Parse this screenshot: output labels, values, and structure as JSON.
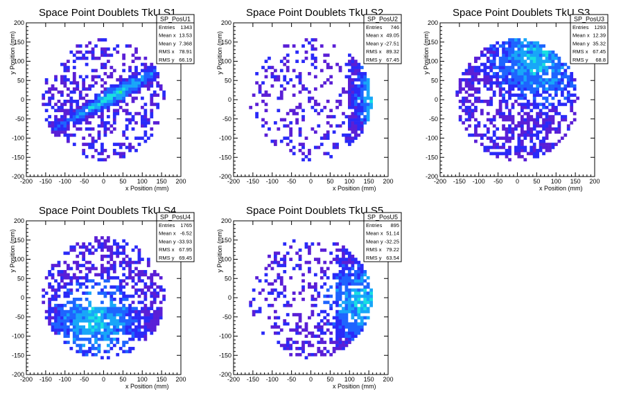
{
  "figure": {
    "background": "#ffffff"
  },
  "chart_data": [
    {
      "type": "heatmap",
      "title": "Space Point Doublets TkU S1",
      "xlabel": "x Position (mm)",
      "ylabel": "y Position (mm)",
      "xlim": [
        -200,
        200
      ],
      "ylim": [
        -200,
        200
      ],
      "xticks": [
        "-200",
        "-150",
        "-100",
        "-50",
        "0",
        "50",
        "100",
        "150",
        "200"
      ],
      "yticks": [
        "-200",
        "-150",
        "-100",
        "-50",
        "0",
        "50",
        "100",
        "150",
        "200"
      ],
      "stats": {
        "name": "SP_PosU1",
        "rows": [
          [
            "Entries",
            "1343"
          ],
          [
            "Mean x",
            "13.53"
          ],
          [
            "Mean y",
            "7.368"
          ],
          [
            "RMS x",
            "78.91"
          ],
          [
            "RMS y",
            "66.19"
          ]
        ]
      },
      "pattern": "diagonal-band",
      "angle_deg": 30,
      "hotspot": [
        30,
        10
      ],
      "colors": [
        "#5a1fd6",
        "#2a2af8",
        "#1e64ff",
        "#18a6f8",
        "#19e0e0",
        "#2ef08a",
        "#ffee1a",
        "#ff2a10"
      ]
    },
    {
      "type": "heatmap",
      "title": "Space Point Doublets TkU S2",
      "xlabel": "x Position (mm)",
      "ylabel": "y Position (mm)",
      "xlim": [
        -200,
        200
      ],
      "ylim": [
        -200,
        200
      ],
      "xticks": [
        "-200",
        "-150",
        "-100",
        "-50",
        "0",
        "50",
        "100",
        "150",
        "200"
      ],
      "yticks": [
        "-200",
        "-150",
        "-100",
        "-50",
        "0",
        "50",
        "100",
        "150",
        "200"
      ],
      "stats": {
        "name": "SP_PosU2",
        "rows": [
          [
            "Entries",
            "746"
          ],
          [
            "Mean x",
            "49.05"
          ],
          [
            "Mean y",
            "-27.51"
          ],
          [
            "RMS x",
            "89.32"
          ],
          [
            "RMS y",
            "67.45"
          ]
        ]
      },
      "pattern": "right-edge",
      "hotspot": [
        150,
        5
      ],
      "colors": [
        "#5a1fd6",
        "#2a2af8",
        "#1e64ff",
        "#18a6f8",
        "#19e0e0",
        "#2ef08a",
        "#ffee1a",
        "#ff2a10"
      ]
    },
    {
      "type": "heatmap",
      "title": "Space Point Doublets TkU S3",
      "xlabel": "x Position (mm)",
      "ylabel": "y Position (mm)",
      "xlim": [
        -200,
        200
      ],
      "ylim": [
        -200,
        200
      ],
      "xticks": [
        "-200",
        "-150",
        "-100",
        "-50",
        "0",
        "50",
        "100",
        "150",
        "200"
      ],
      "yticks": [
        "-200",
        "-150",
        "-100",
        "-50",
        "0",
        "50",
        "100",
        "150",
        "200"
      ],
      "stats": {
        "name": "SP_PosU3",
        "rows": [
          [
            "Entries",
            "1293"
          ],
          [
            "Mean x",
            "12.39"
          ],
          [
            "Mean y",
            "35.32"
          ],
          [
            "RMS x",
            "67.45"
          ],
          [
            "RMS y",
            "68.8"
          ]
        ]
      },
      "pattern": "upper-dense",
      "hotspot": [
        50,
        100
      ],
      "colors": [
        "#5a1fd6",
        "#2a2af8",
        "#1e64ff",
        "#18a6f8",
        "#19e0e0",
        "#2ef08a",
        "#ffee1a",
        "#ff2a10"
      ]
    },
    {
      "type": "heatmap",
      "title": "Space Point Doublets TkU S4",
      "xlabel": "x Position (mm)",
      "ylabel": "y Position (mm)",
      "xlim": [
        -200,
        200
      ],
      "ylim": [
        -200,
        200
      ],
      "xticks": [
        "-200",
        "-150",
        "-100",
        "-50",
        "0",
        "50",
        "100",
        "150",
        "200"
      ],
      "yticks": [
        "-200",
        "-150",
        "-100",
        "-50",
        "0",
        "50",
        "100",
        "150",
        "200"
      ],
      "stats": {
        "name": "SP_PosU4",
        "rows": [
          [
            "Entries",
            "1765"
          ],
          [
            "Mean x",
            "-6.52"
          ],
          [
            "Mean y",
            "-33.93"
          ],
          [
            "RMS x",
            "67.95"
          ],
          [
            "RMS y",
            "69.45"
          ]
        ]
      },
      "pattern": "lower-band",
      "hotspot": [
        -20,
        -60
      ],
      "colors": [
        "#5a1fd6",
        "#2a2af8",
        "#1e64ff",
        "#18a6f8",
        "#19e0e0",
        "#2ef08a",
        "#ffee1a",
        "#ff2a10"
      ]
    },
    {
      "type": "heatmap",
      "title": "Space Point Doublets TkU S5",
      "xlabel": "x Position (mm)",
      "ylabel": "y Position (mm)",
      "xlim": [
        -200,
        200
      ],
      "ylim": [
        -200,
        200
      ],
      "xticks": [
        "-200",
        "-150",
        "-100",
        "-50",
        "0",
        "50",
        "100",
        "150",
        "200"
      ],
      "yticks": [
        "-200",
        "-150",
        "-100",
        "-50",
        "0",
        "50",
        "100",
        "150",
        "200"
      ],
      "stats": {
        "name": "SP_PosU5",
        "rows": [
          [
            "Entries",
            "895"
          ],
          [
            "Mean x",
            "51.14"
          ],
          [
            "Mean y",
            "-32.25"
          ],
          [
            "RMS x",
            "79.22"
          ],
          [
            "RMS y",
            "63.54"
          ]
        ]
      },
      "pattern": "right-lower",
      "hotspot": [
        140,
        -10
      ],
      "colors": [
        "#5a1fd6",
        "#2a2af8",
        "#1e64ff",
        "#18a6f8",
        "#19e0e0",
        "#2ef08a",
        "#ffee1a",
        "#ff2a10"
      ]
    }
  ]
}
